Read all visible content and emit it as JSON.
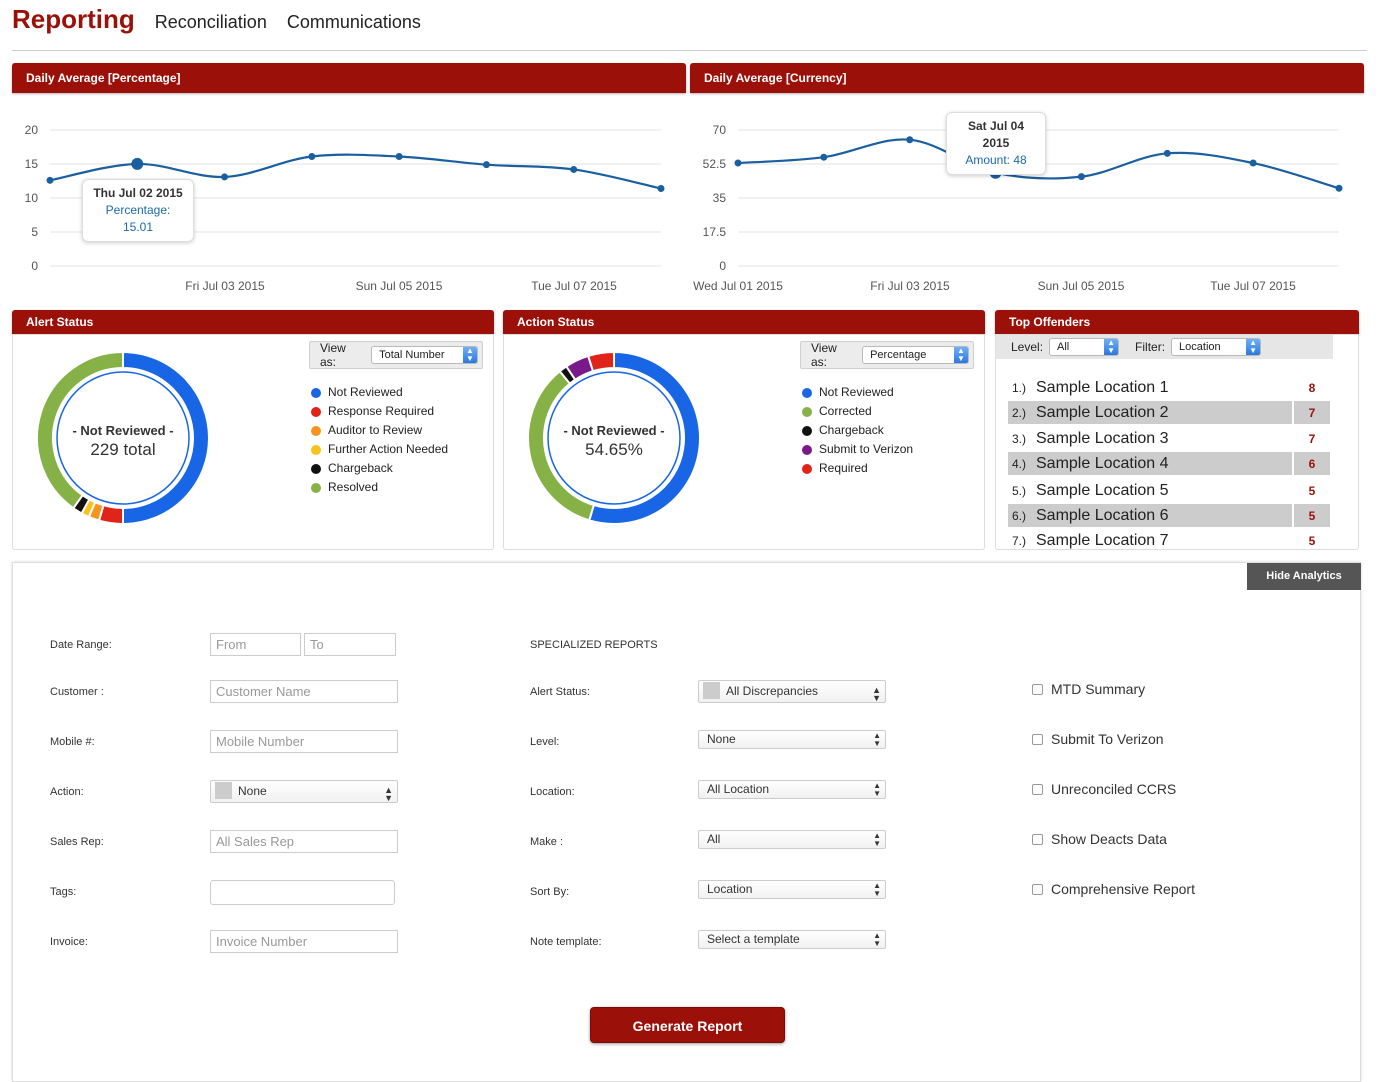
{
  "nav": {
    "tabs": [
      "Reporting",
      "Reconciliation",
      "Communications"
    ]
  },
  "charts": {
    "percentage": {
      "title": "Daily Average [Percentage]",
      "yticks": [
        "20",
        "15",
        "10",
        "5",
        "0"
      ],
      "xticks": [
        "Fri Jul 03 2015",
        "Sun Jul 05 2015",
        "Tue Jul 07 2015"
      ],
      "tooltip": {
        "date": "Thu Jul 02 2015",
        "text": "Percentage: 15.01"
      }
    },
    "currency": {
      "title": "Daily Average [Currency]",
      "yticks": [
        "70",
        "52.5",
        "35",
        "17.5",
        "0"
      ],
      "xticks": [
        "Wed Jul 01 2015",
        "Fri Jul 03 2015",
        "Sun Jul 05 2015",
        "Tue Jul 07 2015"
      ],
      "tooltip": {
        "date": "Sat Jul 04 2015",
        "text": "Amount: 48"
      }
    }
  },
  "chart_data": [
    {
      "type": "line",
      "title": "Daily Average [Percentage]",
      "x": [
        "Wed Jul 01 2015",
        "Thu Jul 02 2015",
        "Fri Jul 03 2015",
        "Sat Jul 04 2015",
        "Sun Jul 05 2015",
        "Mon Jul 06 2015",
        "Tue Jul 07 2015",
        "Wed Jul 08 2015"
      ],
      "values": [
        12.6,
        15.01,
        13.1,
        16.1,
        16.1,
        14.9,
        14.2,
        11.4
      ],
      "ylim": [
        0,
        20
      ],
      "color": "#1a5fa0",
      "grid": true
    },
    {
      "type": "line",
      "title": "Daily Average [Currency]",
      "x": [
        "Wed Jul 01 2015",
        "Thu Jul 02 2015",
        "Fri Jul 03 2015",
        "Sat Jul 04 2015",
        "Sun Jul 05 2015",
        "Mon Jul 06 2015",
        "Tue Jul 07 2015",
        "Wed Jul 08 2015"
      ],
      "values": [
        53,
        56,
        65,
        48,
        46,
        58,
        53,
        40
      ],
      "ylim": [
        0,
        70
      ],
      "color": "#1a5fa0",
      "grid": true
    },
    {
      "type": "pie",
      "title": "Alert Status",
      "categories": [
        "Not Reviewed",
        "Response Required",
        "Auditor to Review",
        "Further Action Needed",
        "Chargeback",
        "Resolved"
      ],
      "values": [
        50,
        4.5,
        2,
        1.5,
        1.8,
        40.2
      ],
      "colors": [
        "#1866e6",
        "#e0241a",
        "#f7931e",
        "#f7c21e",
        "#111111",
        "#86b147"
      ]
    },
    {
      "type": "pie",
      "title": "Action Status",
      "categories": [
        "Not Reviewed",
        "Corrected",
        "Chargeback",
        "Submit to Verizon",
        "Required"
      ],
      "values": [
        54.65,
        34.5,
        1.5,
        4.5,
        4.85
      ],
      "colors": [
        "#1866e6",
        "#86b147",
        "#111111",
        "#7a1a8a",
        "#e0241a"
      ]
    }
  ],
  "alert_status": {
    "title": "Alert Status",
    "view_as_label": "View as:",
    "view_as_value": "Total Number",
    "center_label": "- Not Reviewed -",
    "center_value": "229 total",
    "legend": [
      "Not Reviewed",
      "Response Required",
      "Auditor to Review",
      "Further Action Needed",
      "Chargeback",
      "Resolved"
    ]
  },
  "action_status": {
    "title": "Action Status",
    "view_as_label": "View as:",
    "view_as_value": "Percentage",
    "center_label": "- Not Reviewed -",
    "center_value": "54.65%",
    "legend": [
      "Not Reviewed",
      "Corrected",
      "Chargeback",
      "Submit to Verizon",
      "Required"
    ]
  },
  "top_offenders": {
    "title": "Top Offenders",
    "level_label": "Level:",
    "level_value": "All",
    "filter_label": "Filter:",
    "filter_value": "Location",
    "rows": [
      {
        "num": "1.)",
        "name": "Sample Location 1",
        "value": "8"
      },
      {
        "num": "2.)",
        "name": "Sample Location 2",
        "value": "7"
      },
      {
        "num": "3.)",
        "name": "Sample Location 3",
        "value": "7"
      },
      {
        "num": "4.)",
        "name": "Sample Location 4",
        "value": "6"
      },
      {
        "num": "5.)",
        "name": "Sample Location 5",
        "value": "5"
      },
      {
        "num": "6.)",
        "name": "Sample Location 6",
        "value": "5"
      },
      {
        "num": "7.)",
        "name": "Sample Location 7",
        "value": "5"
      }
    ]
  },
  "form": {
    "hide_analytics": "Hide Analytics",
    "date_range_label": "Date Range:",
    "from_placeholder": "From",
    "to_placeholder": "To",
    "customer_label": "Customer :",
    "customer_placeholder": "Customer Name",
    "mobile_label": "Mobile #:",
    "mobile_placeholder": "Mobile Number",
    "action_label": "Action:",
    "action_value": "None",
    "sales_rep_label": "Sales Rep:",
    "sales_rep_placeholder": "All Sales Rep",
    "tags_label": "Tags:",
    "tags_value": "",
    "invoice_label": "Invoice:",
    "invoice_placeholder": "Invoice Number",
    "specialized_reports": "SPECIALIZED REPORTS",
    "alert_status_label": "Alert Status:",
    "alert_status_value": "All Discrepancies",
    "level_label": "Level:",
    "level_value": "None",
    "location_label": "Location:",
    "location_value": "All Location",
    "make_label": "Make :",
    "make_value": "All",
    "sort_by_label": "Sort By:",
    "sort_by_value": "Location",
    "note_template_label": "Note template:",
    "note_template_value": "Select a template",
    "checkboxes": [
      "MTD Summary",
      "Submit To Verizon",
      "Unreconciled CCRS",
      "Show Deacts Data",
      "Comprehensive Report"
    ],
    "generate_button": "Generate Report"
  }
}
